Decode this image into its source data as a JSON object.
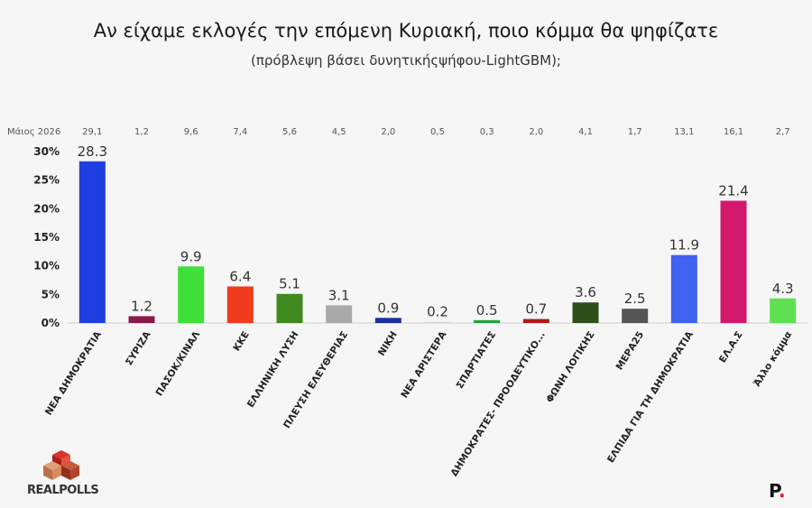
{
  "title": "Αν είχαμε εκλογές την επόμενη Κυριακή, ποιο κόμμα θα ψηφίζατε",
  "subtitle": "(πρόβλεψη βάσει δυνητικήςψήφου-LightGBM);",
  "logos": {
    "realpolls": "REALPOLLS",
    "p_brand": "P"
  },
  "chart_data": {
    "type": "bar",
    "title": "Αν είχαμε εκλογές την επόμενη Κυριακή, ποιο κόμμα θα ψηφίζατε",
    "categories": [
      "ΝΕΑ ΔΗΜΟΚΡΑΤΙΑ",
      "ΣΥΡΙΖΑ",
      "ΠΑΣΟΚ/ΚΙΝΑΛ",
      "ΚΚΕ",
      "ΕΛΛΗΝΙΚΗ ΛΥΣΗ",
      "ΠΛΕΥΣΗ ΕΛΕΥΘΕΡΙΑΣ",
      "ΝΙΚΗ",
      "ΝΕΑ ΑΡΙΣΤΕΡΑ",
      "ΣΠΑΡΤΙΑΤΕΣ",
      "ΔΗΜΟΚΡΑΤΕΣ- ΠΡΟΟΔΕΥΤΙΚΟ...",
      "ΦΩΝΗ ΛΟΓΙΚΗΣ",
      "ΜΕΡΑ25",
      "ΕΛΠΙΔΑ ΓΙΑ ΤΗ ΔΗΜΟΚΡΑΤΙΑ",
      "ΕΛ.Α.Σ",
      "Άλλο κόμμα"
    ],
    "values": [
      28.3,
      1.2,
      9.9,
      6.4,
      5.1,
      3.1,
      0.9,
      0.2,
      0.5,
      0.7,
      3.6,
      2.5,
      11.9,
      21.4,
      4.3
    ],
    "value_labels": [
      "28.3",
      "1.2",
      "9.9",
      "6.4",
      "5.1",
      "3.1",
      "0.9",
      "0.2",
      "0.5",
      "0.7",
      "3.6",
      "2.5",
      "11.9",
      "21.4",
      "4.3"
    ],
    "colors": [
      "#1f3ee0",
      "#8b1a4a",
      "#3fe03a",
      "#f03a1e",
      "#3f8a1f",
      "#a9a9a9",
      "#1c2f9e",
      "#d8d8d8",
      "#22a33a",
      "#b01a1a",
      "#2f4f1a",
      "#555555",
      "#3f63f0",
      "#d4186c",
      "#5fe052"
    ],
    "comparison": {
      "label": "Μάιος 2026",
      "values": [
        "29,1",
        "1,2",
        "9,6",
        "7,4",
        "5,6",
        "4,5",
        "2,0",
        "0,5",
        "0,3",
        "2,0",
        "4,1",
        "1,7",
        "13,1",
        "16,1",
        "2,7"
      ]
    },
    "y_ticks": [
      "0%",
      "5%",
      "10%",
      "15%",
      "20%",
      "25%",
      "30%"
    ],
    "ylim": [
      0,
      30
    ],
    "grid": false,
    "legend": "none"
  }
}
